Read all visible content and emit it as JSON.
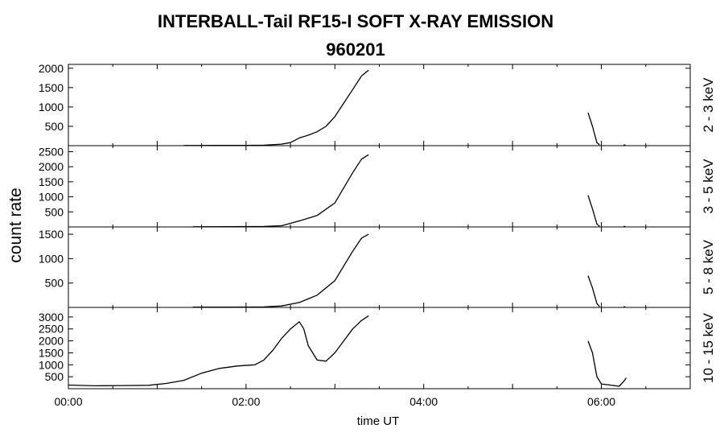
{
  "title": "INTERBALL-Tail RF15-I SOFT X-RAY EMISSION",
  "subtitle": "960201",
  "chart_data": {
    "type": "line",
    "xlabel": "time UT",
    "ylabel": "count rate",
    "xlim": [
      0,
      7
    ],
    "xticks": [
      0,
      2,
      4,
      6
    ],
    "xtick_labels": [
      "00:00",
      "02:00",
      "04:00",
      "06:00"
    ],
    "panels": [
      {
        "name": "2 - 3 keV",
        "ylim": [
          0,
          2100
        ],
        "yticks": [
          500,
          1000,
          1500,
          2000
        ],
        "segments": [
          [
            [
              1.3,
              5
            ],
            [
              1.6,
              6
            ],
            [
              2.0,
              8
            ],
            [
              2.2,
              12
            ],
            [
              2.4,
              40
            ],
            [
              2.5,
              80
            ],
            [
              2.6,
              200
            ],
            [
              2.7,
              270
            ],
            [
              2.8,
              360
            ],
            [
              2.9,
              500
            ],
            [
              3.0,
              750
            ],
            [
              3.1,
              1100
            ],
            [
              3.2,
              1450
            ],
            [
              3.3,
              1800
            ],
            [
              3.38,
              1950
            ]
          ],
          [
            [
              5.85,
              850
            ],
            [
              5.9,
              500
            ],
            [
              5.95,
              80
            ],
            [
              5.98,
              20
            ]
          ],
          [
            [
              6.25,
              20
            ],
            [
              6.27,
              15
            ]
          ]
        ]
      },
      {
        "name": "3 - 5 keV",
        "ylim": [
          0,
          2700
        ],
        "yticks": [
          500,
          1000,
          1500,
          2000,
          2500
        ],
        "segments": [
          [
            [
              1.4,
              5
            ],
            [
              1.8,
              8
            ],
            [
              2.2,
              15
            ],
            [
              2.4,
              40
            ],
            [
              2.6,
              200
            ],
            [
              2.8,
              380
            ],
            [
              3.0,
              800
            ],
            [
              3.1,
              1300
            ],
            [
              3.2,
              1800
            ],
            [
              3.3,
              2250
            ],
            [
              3.38,
              2400
            ]
          ],
          [
            [
              5.85,
              1050
            ],
            [
              5.9,
              600
            ],
            [
              5.95,
              100
            ],
            [
              5.98,
              20
            ]
          ],
          [
            [
              6.25,
              20
            ],
            [
              6.27,
              15
            ]
          ]
        ]
      },
      {
        "name": "5 - 8 keV",
        "ylim": [
          0,
          1650
        ],
        "yticks": [
          500,
          1000,
          1500
        ],
        "segments": [
          [
            [
              1.4,
              5
            ],
            [
              1.8,
              6
            ],
            [
              2.2,
              10
            ],
            [
              2.4,
              30
            ],
            [
              2.6,
              100
            ],
            [
              2.8,
              250
            ],
            [
              3.0,
              550
            ],
            [
              3.1,
              850
            ],
            [
              3.2,
              1150
            ],
            [
              3.3,
              1420
            ],
            [
              3.38,
              1500
            ]
          ],
          [
            [
              5.85,
              650
            ],
            [
              5.9,
              400
            ],
            [
              5.95,
              80
            ],
            [
              5.98,
              15
            ]
          ],
          [
            [
              6.25,
              15
            ],
            [
              6.27,
              10
            ]
          ]
        ]
      },
      {
        "name": "10 - 15 keV",
        "ylim": [
          0,
          3400
        ],
        "yticks": [
          500,
          1000,
          1500,
          2000,
          2500,
          3000
        ],
        "segments": [
          [
            [
              0.0,
              150
            ],
            [
              0.3,
              120
            ],
            [
              0.6,
              130
            ],
            [
              0.9,
              140
            ],
            [
              1.1,
              220
            ],
            [
              1.3,
              350
            ],
            [
              1.5,
              650
            ],
            [
              1.7,
              850
            ],
            [
              1.9,
              950
            ],
            [
              2.1,
              1000
            ],
            [
              2.2,
              1200
            ],
            [
              2.3,
              1600
            ],
            [
              2.4,
              2100
            ],
            [
              2.5,
              2500
            ],
            [
              2.6,
              2800
            ],
            [
              2.65,
              2500
            ],
            [
              2.7,
              1800
            ],
            [
              2.8,
              1200
            ],
            [
              2.9,
              1150
            ],
            [
              3.0,
              1500
            ],
            [
              3.1,
              2000
            ],
            [
              3.2,
              2500
            ],
            [
              3.3,
              2850
            ],
            [
              3.38,
              3050
            ]
          ],
          [
            [
              5.85,
              2000
            ],
            [
              5.9,
              1500
            ],
            [
              5.95,
              500
            ],
            [
              6.0,
              200
            ],
            [
              6.1,
              150
            ],
            [
              6.2,
              100
            ],
            [
              6.25,
              300
            ],
            [
              6.28,
              450
            ]
          ]
        ]
      }
    ]
  }
}
